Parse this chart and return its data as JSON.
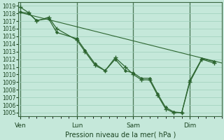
{
  "background_color": "#c5e8da",
  "grid_color": "#9ecfba",
  "line_color": "#2d6631",
  "ylabel_text": "Pression niveau de la mer( hPa )",
  "ylim": [
    1004.5,
    1019.5
  ],
  "yticks": [
    1005,
    1006,
    1007,
    1008,
    1009,
    1010,
    1011,
    1012,
    1013,
    1014,
    1015,
    1016,
    1017,
    1018,
    1019
  ],
  "xtick_labels": [
    "Ven",
    "Lun",
    "Sam",
    "Dim"
  ],
  "xtick_positions": [
    0,
    28,
    56,
    84
  ],
  "xlim": [
    -1,
    100
  ],
  "vline_positions": [
    0,
    28,
    56,
    84
  ],
  "trend_x": [
    0,
    100
  ],
  "trend_y": [
    1018.1,
    1011.5
  ],
  "line1_x": [
    0,
    4,
    8,
    14,
    18,
    28,
    32,
    37,
    42,
    47,
    52,
    56,
    60,
    64,
    68,
    72,
    76,
    80,
    84,
    90,
    96
  ],
  "line1_y": [
    1018.8,
    1018.1,
    1017.0,
    1017.5,
    1016.0,
    1014.5,
    1013.0,
    1011.2,
    1010.5,
    1012.2,
    1011.0,
    1010.0,
    1009.3,
    1009.3,
    1007.3,
    1005.5,
    1005.0,
    1005.0,
    1009.0,
    1012.0,
    1011.5
  ],
  "line2_x": [
    0,
    4,
    8,
    14,
    18,
    28,
    32,
    37,
    42,
    47,
    52,
    56,
    60,
    64,
    68,
    72,
    76,
    80,
    84,
    90,
    96
  ],
  "line2_y": [
    1018.2,
    1018.0,
    1017.1,
    1017.3,
    1015.5,
    1014.7,
    1013.2,
    1011.4,
    1010.5,
    1012.0,
    1010.5,
    1010.2,
    1009.5,
    1009.5,
    1007.5,
    1005.7,
    1005.1,
    1005.0,
    1009.2,
    1012.1,
    1011.7
  ],
  "xlabel_fontsize": 7.0,
  "ytick_fontsize": 5.5,
  "xtick_fontsize": 6.5
}
